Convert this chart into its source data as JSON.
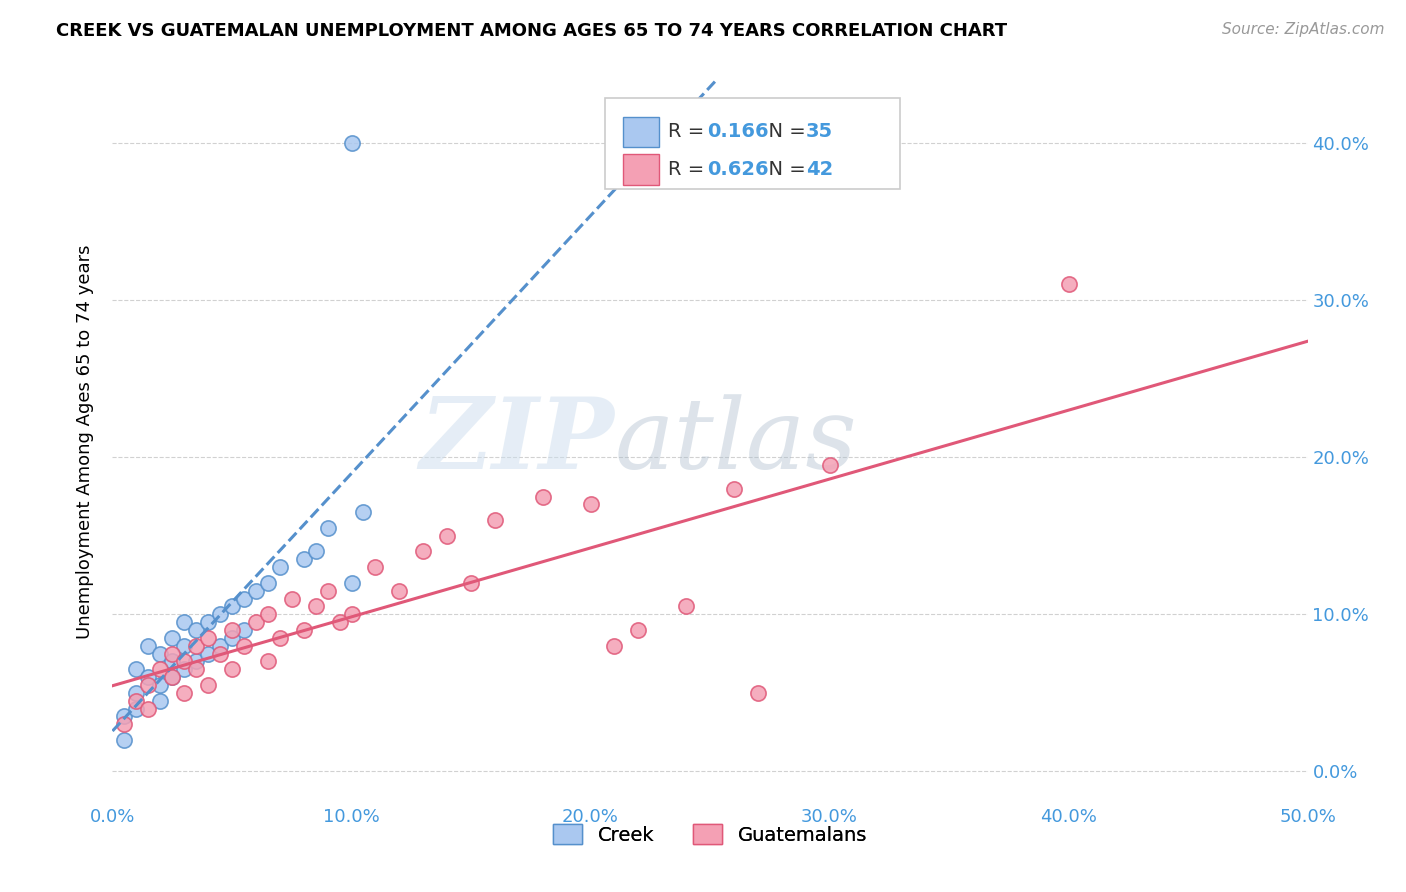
{
  "title": "CREEK VS GUATEMALAN UNEMPLOYMENT AMONG AGES 65 TO 74 YEARS CORRELATION CHART",
  "source": "Source: ZipAtlas.com",
  "ylabel": "Unemployment Among Ages 65 to 74 years",
  "xlim": [
    0.0,
    0.5
  ],
  "ylim": [
    -0.02,
    0.44
  ],
  "creek_color": "#aac8f0",
  "guatemalan_color": "#f4a0b4",
  "creek_edge_color": "#5590cc",
  "guatemalan_edge_color": "#e05878",
  "creek_line_color": "#5590cc",
  "guatemalan_line_color": "#e05878",
  "creek_R": 0.166,
  "creek_N": 35,
  "guatemalan_R": 0.626,
  "guatemalan_N": 42,
  "creek_scatter_x": [
    0.005,
    0.005,
    0.01,
    0.01,
    0.01,
    0.015,
    0.015,
    0.02,
    0.02,
    0.02,
    0.025,
    0.025,
    0.025,
    0.03,
    0.03,
    0.03,
    0.035,
    0.035,
    0.04,
    0.04,
    0.045,
    0.045,
    0.05,
    0.05,
    0.055,
    0.055,
    0.06,
    0.065,
    0.07,
    0.08,
    0.085,
    0.09,
    0.1,
    0.105,
    0.1
  ],
  "creek_scatter_y": [
    0.02,
    0.035,
    0.05,
    0.065,
    0.04,
    0.06,
    0.08,
    0.055,
    0.075,
    0.045,
    0.07,
    0.085,
    0.06,
    0.08,
    0.095,
    0.065,
    0.09,
    0.07,
    0.095,
    0.075,
    0.1,
    0.08,
    0.105,
    0.085,
    0.11,
    0.09,
    0.115,
    0.12,
    0.13,
    0.135,
    0.14,
    0.155,
    0.12,
    0.165,
    0.4
  ],
  "guatemalan_scatter_x": [
    0.005,
    0.01,
    0.015,
    0.015,
    0.02,
    0.025,
    0.025,
    0.03,
    0.03,
    0.035,
    0.035,
    0.04,
    0.04,
    0.045,
    0.05,
    0.05,
    0.055,
    0.06,
    0.065,
    0.065,
    0.07,
    0.075,
    0.08,
    0.085,
    0.09,
    0.095,
    0.1,
    0.11,
    0.12,
    0.13,
    0.14,
    0.15,
    0.16,
    0.18,
    0.2,
    0.21,
    0.22,
    0.24,
    0.27,
    0.3,
    0.4,
    0.26
  ],
  "guatemalan_scatter_y": [
    0.03,
    0.045,
    0.055,
    0.04,
    0.065,
    0.06,
    0.075,
    0.05,
    0.07,
    0.065,
    0.08,
    0.055,
    0.085,
    0.075,
    0.065,
    0.09,
    0.08,
    0.095,
    0.07,
    0.1,
    0.085,
    0.11,
    0.09,
    0.105,
    0.115,
    0.095,
    0.1,
    0.13,
    0.115,
    0.14,
    0.15,
    0.12,
    0.16,
    0.175,
    0.17,
    0.08,
    0.09,
    0.105,
    0.05,
    0.195,
    0.31,
    0.18
  ]
}
